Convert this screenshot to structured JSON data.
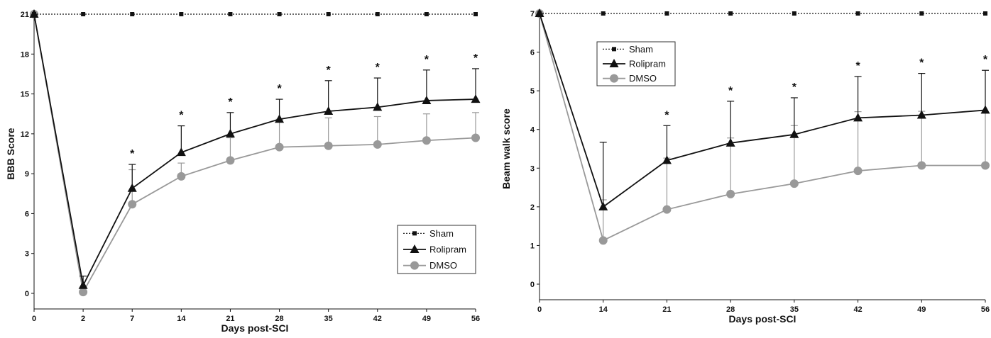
{
  "chart_data": [
    {
      "type": "line",
      "xlabel": "Days post-SCI",
      "ylabel": "BBB Score",
      "categories": [
        "0",
        "2",
        "7",
        "14",
        "21",
        "28",
        "35",
        "42",
        "49",
        "56"
      ],
      "ylim": [
        0,
        21
      ],
      "yticks": [
        0,
        3,
        6,
        9,
        12,
        15,
        18,
        21
      ],
      "legend_position": "bottom-right",
      "series": [
        {
          "name": "Sham",
          "style": "dotted",
          "marker": "square",
          "color": "#111111",
          "values": [
            21,
            21,
            21,
            21,
            21,
            21,
            21,
            21,
            21,
            21
          ]
        },
        {
          "name": "Rolipram",
          "style": "solid",
          "marker": "triangle",
          "color": "#111111",
          "values": [
            21,
            0.6,
            7.9,
            10.6,
            12.0,
            13.1,
            13.7,
            14.0,
            14.5,
            14.6
          ],
          "error": [
            0,
            0.7,
            1.8,
            2.0,
            1.6,
            1.5,
            2.3,
            2.2,
            2.3,
            2.3
          ]
        },
        {
          "name": "DMSO",
          "style": "solid",
          "marker": "circle",
          "color": "#999999",
          "values": [
            21,
            0.1,
            6.7,
            8.8,
            10.0,
            11.0,
            11.1,
            11.2,
            11.5,
            11.7
          ],
          "error": [
            0,
            0.3,
            2.6,
            1.0,
            1.7,
            2.1,
            2.1,
            2.1,
            2.0,
            1.9
          ]
        }
      ],
      "annotations": [
        {
          "text": "*",
          "category": "7"
        },
        {
          "text": "*",
          "category": "14"
        },
        {
          "text": "*",
          "category": "21"
        },
        {
          "text": "*",
          "category": "28"
        },
        {
          "text": "*",
          "category": "35"
        },
        {
          "text": "*",
          "category": "42"
        },
        {
          "text": "*",
          "category": "49"
        },
        {
          "text": "*",
          "category": "56"
        }
      ]
    },
    {
      "type": "line",
      "xlabel": "Days post-SCI",
      "ylabel": "Beam walk score",
      "categories": [
        "0",
        "14",
        "21",
        "28",
        "35",
        "42",
        "49",
        "56"
      ],
      "ylim": [
        0,
        7
      ],
      "yticks": [
        0,
        1,
        2,
        3,
        4,
        5,
        6,
        7
      ],
      "legend_position": "top-left",
      "series": [
        {
          "name": "Sham",
          "style": "dotted",
          "marker": "square",
          "color": "#111111",
          "values": [
            7,
            7,
            7,
            7,
            7,
            7,
            7,
            7
          ]
        },
        {
          "name": "Rolipram",
          "style": "solid",
          "marker": "triangle",
          "color": "#111111",
          "values": [
            7,
            2.0,
            3.2,
            3.65,
            3.87,
            4.3,
            4.37,
            4.5
          ],
          "error": [
            0,
            1.67,
            0.9,
            1.08,
            0.95,
            1.07,
            1.08,
            1.03
          ]
        },
        {
          "name": "DMSO",
          "style": "solid",
          "marker": "circle",
          "color": "#999999",
          "values": [
            7,
            1.13,
            1.93,
            2.33,
            2.6,
            2.93,
            3.07,
            3.07
          ],
          "error": [
            0,
            1.05,
            1.33,
            1.45,
            1.5,
            1.53,
            1.4,
            1.38
          ]
        }
      ],
      "annotations": [
        {
          "text": "*",
          "category": "21"
        },
        {
          "text": "*",
          "category": "28"
        },
        {
          "text": "*",
          "category": "35"
        },
        {
          "text": "*",
          "category": "42"
        },
        {
          "text": "*",
          "category": "49"
        },
        {
          "text": "*",
          "category": "56"
        }
      ]
    }
  ]
}
